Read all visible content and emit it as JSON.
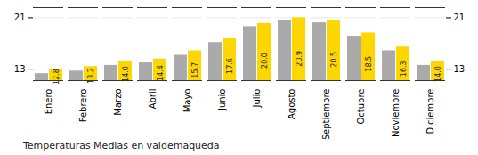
{
  "chart_data": {
    "type": "bar",
    "title": "Temperaturas Medias en valdemaqueda",
    "categories": [
      "Enero",
      "Febrero",
      "Marzo",
      "Abril",
      "Mayo",
      "Junio",
      "Julio",
      "Agosto",
      "Septiembre",
      "Octubre",
      "Noviembre",
      "Diciembre"
    ],
    "series": [
      {
        "color": "#AAAAAA",
        "values": [
          12.1,
          12.5,
          13.4,
          13.8,
          15.0,
          17.0,
          19.5,
          20.5,
          20.1,
          18.0,
          15.7,
          13.4
        ]
      },
      {
        "color": "#FFD700",
        "values": [
          12.8,
          13.2,
          14.0,
          14.4,
          15.7,
          17.6,
          20.0,
          20.9,
          20.5,
          18.5,
          16.3,
          14.0
        ],
        "data_labels": true,
        "value_labels": [
          "12.8",
          "13.2",
          "14.0",
          "14.4",
          "15.7",
          "17.6",
          "20.0",
          "20.9",
          "20.5",
          "18.5",
          "16.3",
          "14.0"
        ]
      }
    ],
    "ylim": [
      11.0,
      22.5
    ],
    "yticks": [
      12.8,
      20.9
    ],
    "grid": true
  }
}
